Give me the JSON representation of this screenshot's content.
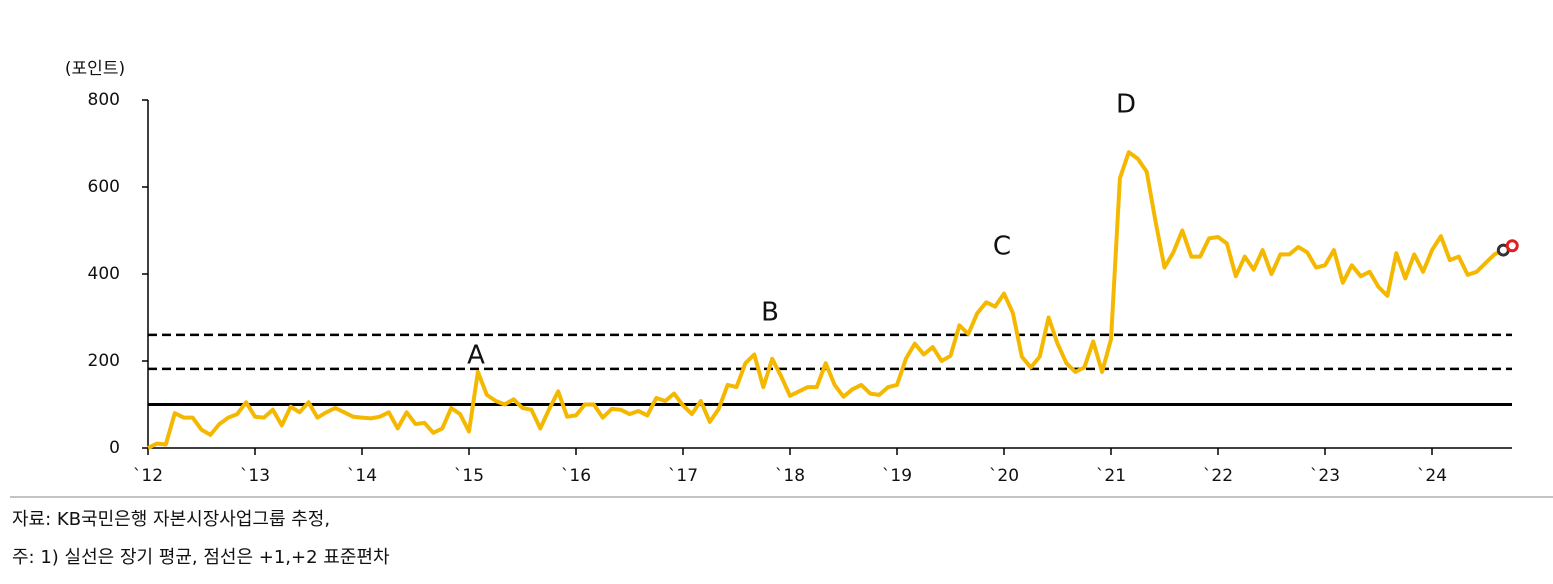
{
  "chart_data": {
    "type": "line",
    "y_label": "(포인트)",
    "categories": [
      "`12",
      null,
      null,
      null,
      null,
      null,
      null,
      null,
      null,
      null,
      null,
      null,
      "`13",
      null,
      null,
      null,
      null,
      null,
      null,
      null,
      null,
      null,
      null,
      null,
      "`14",
      null,
      null,
      null,
      null,
      null,
      null,
      null,
      null,
      null,
      null,
      null,
      "`15",
      null,
      null,
      null,
      null,
      null,
      null,
      null,
      null,
      null,
      null,
      null,
      "`16",
      null,
      null,
      null,
      null,
      null,
      null,
      null,
      null,
      null,
      null,
      null,
      "`17",
      null,
      null,
      null,
      null,
      null,
      null,
      null,
      null,
      null,
      null,
      null,
      "`18",
      null,
      null,
      null,
      null,
      null,
      null,
      null,
      null,
      null,
      null,
      null,
      "`19",
      null,
      null,
      null,
      null,
      null,
      null,
      null,
      null,
      null,
      null,
      null,
      "`20",
      null,
      null,
      null,
      null,
      null,
      null,
      null,
      null,
      null,
      null,
      null,
      "`21",
      null,
      null,
      null,
      null,
      null,
      null,
      null,
      null,
      null,
      null,
      null,
      "`22",
      null,
      null,
      null,
      null,
      null,
      null,
      null,
      null,
      null,
      null,
      null,
      "`23",
      null,
      null,
      null,
      null,
      null,
      null,
      null,
      null,
      null,
      null,
      null,
      "`24",
      null,
      null,
      null,
      null,
      null,
      null,
      null,
      null,
      null
    ],
    "series": [
      {
        "style": "line",
        "color": "#f5b800",
        "values": [
          0,
          10,
          8,
          80,
          70,
          70,
          42,
          30,
          55,
          70,
          78,
          105,
          72,
          70,
          88,
          52,
          95,
          82,
          105,
          70,
          82,
          92,
          82,
          72,
          70,
          68,
          72,
          82,
          45,
          82,
          55,
          58,
          35,
          45,
          92,
          78,
          38,
          175,
          122,
          108,
          100,
          112,
          92,
          88,
          45,
          90,
          130,
          72,
          75,
          100,
          100,
          70,
          90,
          88,
          78,
          85,
          75,
          115,
          108,
          125,
          98,
          78,
          108,
          60,
          90,
          145,
          140,
          195,
          215,
          140,
          205,
          165,
          120,
          130,
          140,
          140,
          195,
          145,
          118,
          135,
          145,
          125,
          122,
          140,
          145,
          205,
          240,
          215,
          232,
          200,
          212,
          282,
          262,
          310,
          335,
          325,
          355,
          310,
          210,
          185,
          210,
          300,
          240,
          195,
          175,
          185,
          245,
          175,
          250,
          620,
          680,
          665,
          635,
          520,
          415,
          450,
          500,
          440,
          440,
          482,
          485,
          470,
          395,
          440,
          410,
          455,
          400,
          445,
          445,
          462,
          450,
          415,
          420,
          455,
          380,
          420,
          395,
          405,
          370,
          350,
          448,
          390,
          445,
          405,
          455,
          487,
          432,
          440,
          398,
          405,
          425,
          445,
          455,
          null
        ]
      },
      {
        "style": "marker",
        "color": "#e02020",
        "values": [
          null,
          null,
          null,
          null,
          null,
          null,
          null,
          null,
          null,
          null,
          null,
          null,
          null,
          null,
          null,
          null,
          null,
          null,
          null,
          null,
          null,
          null,
          null,
          null,
          null,
          null,
          null,
          null,
          null,
          null,
          null,
          null,
          null,
          null,
          null,
          null,
          null,
          null,
          null,
          null,
          null,
          null,
          null,
          null,
          null,
          null,
          null,
          null,
          null,
          null,
          null,
          null,
          null,
          null,
          null,
          null,
          null,
          null,
          null,
          null,
          null,
          null,
          null,
          null,
          null,
          null,
          null,
          null,
          null,
          null,
          null,
          null,
          null,
          null,
          null,
          null,
          null,
          null,
          null,
          null,
          null,
          null,
          null,
          null,
          null,
          null,
          null,
          null,
          null,
          null,
          null,
          null,
          null,
          null,
          null,
          null,
          null,
          null,
          null,
          null,
          null,
          null,
          null,
          null,
          null,
          null,
          null,
          null,
          null,
          null,
          null,
          null,
          null,
          null,
          null,
          null,
          null,
          null,
          null,
          null,
          null,
          null,
          null,
          null,
          null,
          null,
          null,
          null,
          null,
          null,
          null,
          null,
          null,
          null,
          null,
          null,
          null,
          null,
          null,
          null,
          null,
          null,
          null,
          null,
          null,
          null,
          null,
          null,
          null,
          null,
          null,
          null,
          null,
          465
        ]
      }
    ],
    "end_marker_color": "#333333",
    "ylim": [
      0,
      800
    ],
    "yticks": [
      0,
      200,
      400,
      600,
      800
    ],
    "hlines": [
      {
        "value": 100,
        "style": "solid"
      },
      {
        "value": 182,
        "style": "dashed"
      },
      {
        "value": 260,
        "style": "dashed"
      }
    ],
    "annotations": [
      "A",
      "B",
      "C",
      "D"
    ]
  },
  "notes": [
    "자료: KB국민은행 자본시장사업그룹 추정,",
    "주: 1) 실선은 장기 평균, 점선은 +1,+2 표준편차"
  ]
}
